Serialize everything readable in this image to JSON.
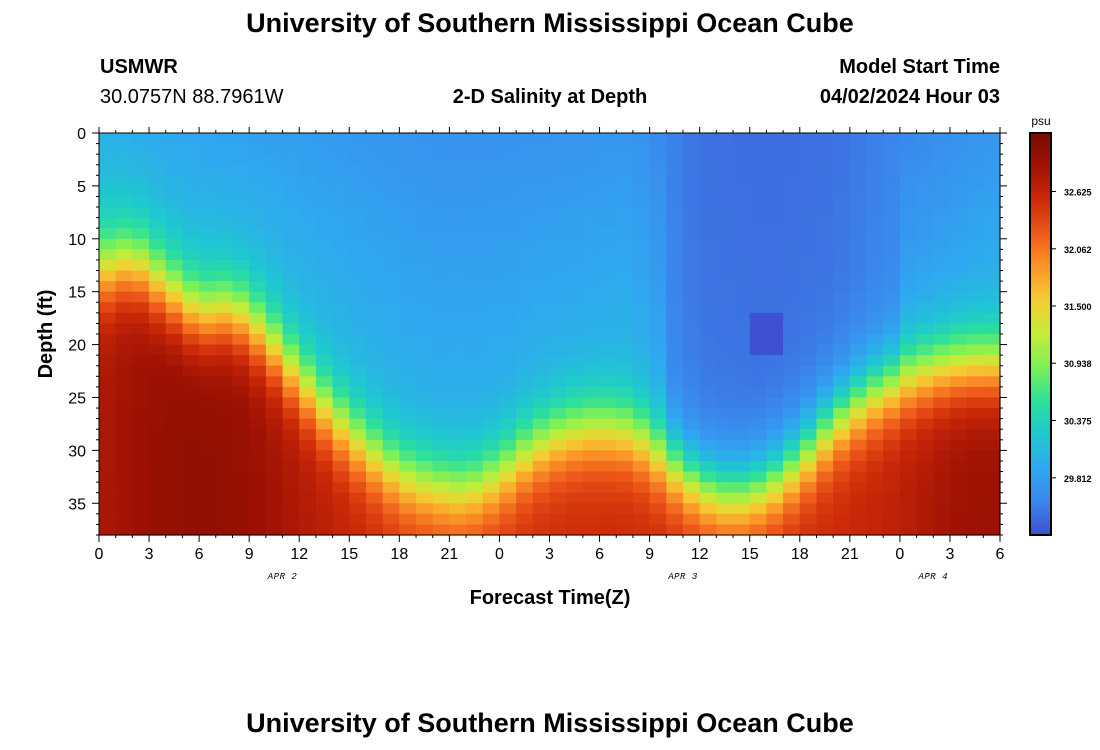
{
  "header": {
    "title": "University of Southern Mississippi Ocean Cube",
    "station": "USMWR",
    "coords": "30.0757N  88.7961W",
    "plot_title": "2-D Salinity at Depth",
    "model_label": "Model Start Time",
    "model_time": "04/02/2024 Hour 03"
  },
  "footer": {
    "title": "University of Southern Mississippi Ocean Cube"
  },
  "chart_data": {
    "type": "heatmap",
    "title": "2-D Salinity at Depth",
    "xlabel": "Forecast Time(Z)",
    "ylabel": "Depth (ft)",
    "x_tick_labels": [
      "0",
      "3",
      "6",
      "9",
      "12",
      "15",
      "18",
      "21",
      "0",
      "3",
      "6",
      "9",
      "12",
      "15",
      "18",
      "21",
      "0",
      "3",
      "6"
    ],
    "x_range_hours": [
      0,
      54
    ],
    "date_labels": [
      {
        "label": "APR 2",
        "hour": 11
      },
      {
        "label": "APR 3",
        "hour": 35
      },
      {
        "label": "APR 4",
        "hour": 50
      }
    ],
    "y_ticks": [
      0,
      5,
      10,
      15,
      20,
      25,
      30,
      35
    ],
    "y_range_ft": [
      0,
      38
    ],
    "colorbar": {
      "unit": "psu",
      "min": 29.25,
      "max": 33.2,
      "tick_labels": [
        "32.625",
        "32.062",
        "31.500",
        "30.938",
        "30.375",
        "29.812"
      ],
      "tick_values": [
        32.625,
        32.062,
        31.5,
        30.938,
        30.375,
        29.812
      ]
    },
    "halocline_depth_ft": {
      "hours": [
        0,
        2,
        4,
        6,
        8,
        10,
        12,
        14,
        16,
        18,
        20,
        22,
        24,
        26,
        28,
        30,
        32,
        34,
        36,
        38,
        40,
        42,
        44,
        46,
        48,
        50,
        52,
        54
      ],
      "depth": [
        13.5,
        12.5,
        15,
        17.5,
        17,
        19.5,
        23.5,
        27,
        30,
        32.5,
        33.5,
        34,
        32.5,
        30,
        28.5,
        28,
        28.5,
        31,
        33.5,
        34.5,
        33.5,
        31,
        27.5,
        25,
        23.5,
        22.5,
        22,
        22
      ]
    },
    "surface_salinity_psu": {
      "hours": [
        0,
        4,
        8,
        12,
        16,
        20,
        24,
        28,
        32,
        34.5,
        36,
        40,
        44,
        48,
        54
      ],
      "values": [
        30.0,
        29.9,
        29.85,
        29.8,
        29.75,
        29.7,
        29.7,
        29.72,
        29.75,
        29.55,
        29.45,
        29.42,
        29.45,
        29.6,
        29.75
      ]
    },
    "minimum_cell": {
      "hour": 40,
      "depth_ft": 19,
      "value_psu": 29.25
    },
    "colormap": [
      "#3f51d0",
      "#3b86ec",
      "#2fa8f0",
      "#1fc8cf",
      "#2de09a",
      "#7cf058",
      "#c4ec38",
      "#f5cd32",
      "#fb9528",
      "#ee5a1a",
      "#cc2a08",
      "#a01204",
      "#7a0b02"
    ]
  }
}
